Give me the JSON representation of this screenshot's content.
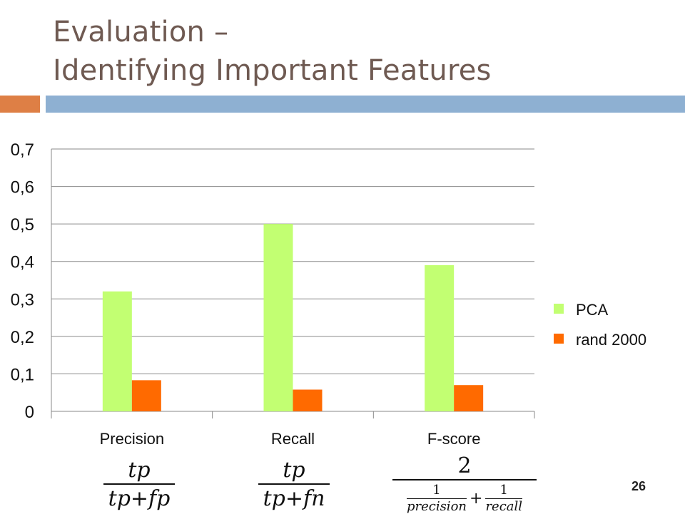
{
  "slide": {
    "title_line1": "Evaluation –",
    "title_line2": "Identifying Important Features",
    "page_number": "26"
  },
  "colors": {
    "pca": "#c2ff72",
    "rand": "#ff6a00",
    "title": "#6f5a52",
    "accent_orange": "#de7f45",
    "accent_blue": "#8eb0d2"
  },
  "chart_data": {
    "type": "bar",
    "categories": [
      "Precision",
      "Recall",
      "F-score"
    ],
    "series": [
      {
        "name": "PCA",
        "values": [
          0.32,
          0.5,
          0.39
        ]
      },
      {
        "name": "rand 2000",
        "values": [
          0.083,
          0.058,
          0.07
        ]
      }
    ],
    "ylim": [
      0,
      0.7
    ],
    "yticks": [
      0,
      0.1,
      0.2,
      0.3,
      0.4,
      0.5,
      0.6,
      0.7
    ],
    "ytick_labels": [
      "0",
      "0,1",
      "0,2",
      "0,3",
      "0,4",
      "0,5",
      "0,6",
      "0,7"
    ],
    "grid": true,
    "legend_position": "right",
    "title": "",
    "xlabel": "",
    "ylabel": ""
  },
  "formulas": {
    "precision": {
      "numerator": "tp",
      "denominator": "tp+fp"
    },
    "recall": {
      "numerator": "tp",
      "denominator": "tp+fn"
    },
    "fscore": {
      "numerator": "2",
      "term1_num": "1",
      "term1_den": "precision",
      "plus": "+",
      "term2_num": "1",
      "term2_den": "recall"
    }
  }
}
